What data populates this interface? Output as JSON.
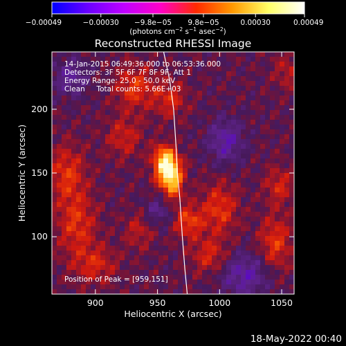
{
  "chart_data": {
    "type": "heatmap",
    "title": "Reconstructed RHESSI Image",
    "xlabel": "Heliocentric X (arcsec)",
    "ylabel": "Heliocentric Y (arcsec)",
    "xlim": [
      865,
      1060
    ],
    "ylim": [
      55,
      245
    ],
    "xticks": [
      900,
      950,
      1000,
      1050
    ],
    "yticks": [
      100,
      150,
      200
    ],
    "colorbar": {
      "min": -0.00049,
      "max": 0.00049,
      "ticks": [
        -0.00049,
        -0.0003,
        -9.8e-05,
        9.8e-05,
        0.0003,
        0.00049
      ],
      "tick_labels": [
        "−0.00049",
        "−0.00030",
        "−9.8e−05",
        "9.8e−05",
        "0.00030",
        "0.00049"
      ],
      "unit_parts": [
        "(photons cm",
        "−2",
        " s",
        "−1",
        " asec",
        "−2",
        ")"
      ],
      "palette": [
        "#0000ff",
        "#6a00ff",
        "#bf00ff",
        "#ff00c8",
        "#ff2a00",
        "#ff9900",
        "#ffff66",
        "#ffffff"
      ]
    },
    "annotations": [
      "14-Jan-2015 06:49:36.000 to 06:53:36.000",
      "Detectors: 3F 5F 6F 7F 8F 9F, Att 1",
      "Energy Range: 25.0 - 50.0 keV",
      "Clean     Total counts: 5.66E+03"
    ],
    "peak_label": "Position of Peak = [959,151]",
    "peak": [
      959,
      151
    ],
    "sources": [
      {
        "x": 959,
        "y": 151,
        "amp": 1.0,
        "sx": 7,
        "sy": 9
      },
      {
        "x": 955,
        "y": 163,
        "amp": 0.5,
        "sx": 6,
        "sy": 7
      },
      {
        "x": 963,
        "y": 138,
        "amp": 0.35,
        "sx": 5,
        "sy": 8
      },
      {
        "x": 960,
        "y": 208,
        "amp": 0.32,
        "sx": 9,
        "sy": 10
      },
      {
        "x": 932,
        "y": 217,
        "amp": 0.38,
        "sx": 11,
        "sy": 12
      },
      {
        "x": 923,
        "y": 178,
        "amp": 0.28,
        "sx": 10,
        "sy": 11
      },
      {
        "x": 975,
        "y": 112,
        "amp": 0.42,
        "sx": 8,
        "sy": 9
      },
      {
        "x": 1000,
        "y": 122,
        "amp": 0.38,
        "sx": 10,
        "sy": 14
      },
      {
        "x": 992,
        "y": 85,
        "amp": 0.32,
        "sx": 10,
        "sy": 10
      },
      {
        "x": 1045,
        "y": 95,
        "amp": 0.38,
        "sx": 9,
        "sy": 15
      },
      {
        "x": 1048,
        "y": 140,
        "amp": 0.3,
        "sx": 8,
        "sy": 10
      },
      {
        "x": 877,
        "y": 150,
        "amp": 0.36,
        "sx": 10,
        "sy": 15
      },
      {
        "x": 885,
        "y": 110,
        "amp": 0.36,
        "sx": 11,
        "sy": 18
      },
      {
        "x": 900,
        "y": 78,
        "amp": 0.3,
        "sx": 12,
        "sy": 10
      },
      {
        "x": 935,
        "y": 105,
        "amp": 0.24,
        "sx": 8,
        "sy": 10
      },
      {
        "x": 1055,
        "y": 230,
        "amp": 0.22,
        "sx": 8,
        "sy": 10
      },
      {
        "x": 1005,
        "y": 175,
        "amp": -0.38,
        "sx": 10,
        "sy": 12
      },
      {
        "x": 1020,
        "y": 70,
        "amp": -0.38,
        "sx": 14,
        "sy": 12
      },
      {
        "x": 880,
        "y": 225,
        "amp": -0.32,
        "sx": 10,
        "sy": 10
      },
      {
        "x": 950,
        "y": 120,
        "amp": -0.25,
        "sx": 8,
        "sy": 8
      }
    ],
    "limb_curve": [
      [
        955,
        245
      ],
      [
        960,
        222
      ],
      [
        963,
        200
      ],
      [
        965,
        170
      ],
      [
        966,
        150
      ],
      [
        968,
        130
      ],
      [
        970,
        100
      ],
      [
        972,
        75
      ],
      [
        974,
        55
      ]
    ]
  },
  "timestamp": "18-May-2022 00:40"
}
